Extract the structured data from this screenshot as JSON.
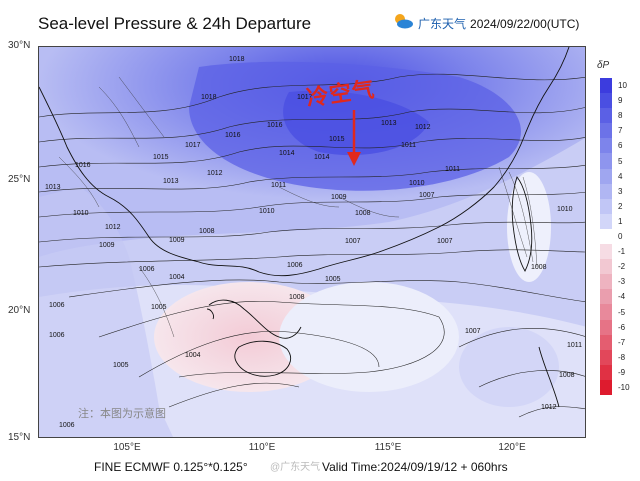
{
  "header": {
    "title": "Sea-level Pressure & 24h Departure",
    "brand_name": "广东天气",
    "brand_time": "2024/09/22/00(UTC)"
  },
  "map": {
    "lat_labels": [
      "30°N",
      "25°N",
      "20°N",
      "15°N"
    ],
    "lon_labels": [
      "105°E",
      "110°E",
      "115°E",
      "120°E"
    ],
    "annotation": "冷空气",
    "note": "注：本图为示意图",
    "isobar_labels": [
      "1018",
      "1017",
      "1016",
      "1015",
      "1014",
      "1013",
      "1012",
      "1011",
      "1010",
      "1009",
      "1008",
      "1007",
      "1006",
      "1005",
      "1004",
      "1018",
      "1017",
      "1016",
      "1015",
      "1014",
      "1013",
      "1012",
      "1011",
      "1010",
      "1009",
      "1008",
      "1007",
      "1006",
      "1005",
      "1004",
      "1016",
      "1013",
      "1012",
      "1011",
      "1010",
      "1009",
      "1008",
      "1007",
      "1006",
      "1005",
      "1006",
      "1007",
      "1008",
      "1010",
      "1012",
      "1011",
      "1008",
      "1006"
    ],
    "colors": {
      "strong_positive": "#5b5ee6",
      "positive": "#b4b8f2",
      "neutral": "#f2f2fa",
      "negative": "#f5d4de",
      "annotation": "#e0281e"
    }
  },
  "legend": {
    "title": "δP",
    "ticks": [
      "10",
      "9",
      "8",
      "7",
      "6",
      "5",
      "4",
      "3",
      "2",
      "1",
      "0",
      "-1",
      "-2",
      "-3",
      "-4",
      "-5",
      "-6",
      "-7",
      "-8",
      "-9",
      "-10"
    ],
    "colors": [
      "#3c3cde",
      "#4a4fe2",
      "#5b60e5",
      "#6c72e8",
      "#7d84eb",
      "#8e95ee",
      "#9fa6f0",
      "#b0b6f3",
      "#c1c6f6",
      "#d2d6f9",
      "#ffffff",
      "#f6dce4",
      "#f2c8d2",
      "#eeb3c0",
      "#ea9eae",
      "#e8899b",
      "#e67386",
      "#e45d70",
      "#e2475a",
      "#e03144",
      "#de1b2e"
    ]
  },
  "footer": {
    "model": "FINE ECMWF 0.125°*0.125°",
    "valid_time": "Valid Time:2024/09/19/12 + 060hrs",
    "watermark": "@广东天气"
  }
}
